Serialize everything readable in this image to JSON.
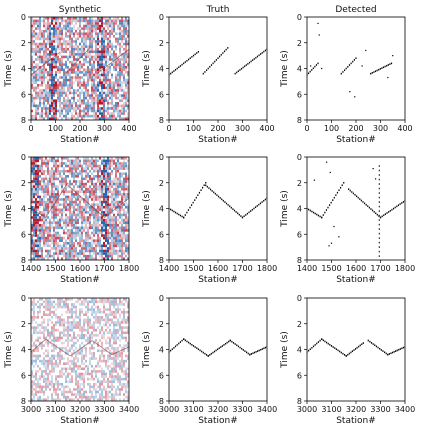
{
  "column_titles": [
    "Synthetic",
    "Truth",
    "Detected"
  ],
  "colors": {
    "positive": "#b2182b",
    "negative": "#2166ac",
    "background": "#ffffff",
    "picks": "#000000"
  },
  "chart_data": [
    {
      "type": "heatmap",
      "title": "Synthetic",
      "colormap": "seismic (blue-white-red)",
      "xlabel": "Station#",
      "ylabel": "Time (s)",
      "xlim": [
        0,
        400
      ],
      "ylim": [
        8,
        0
      ],
      "xticks": [
        "0",
        "100",
        "200",
        "300",
        "400"
      ],
      "yticks": [
        "0",
        "2",
        "4",
        "6",
        "8"
      ],
      "noise_level": 0.8,
      "dark_bands_station": [
        90,
        285
      ],
      "event_segments": [
        {
          "x": [
            0,
            120
          ],
          "y": [
            3.5,
            5.3
          ]
        },
        {
          "x": [
            140,
            240
          ],
          "y": [
            3.6,
            5.6
          ]
        },
        {
          "x": [
            270,
            400
          ],
          "y": [
            3.6,
            5.5
          ]
        }
      ]
    },
    {
      "type": "scatter",
      "title": "Truth",
      "xlabel": "Station#",
      "ylabel": "Time (s)",
      "xlim": [
        0,
        400
      ],
      "ylim": [
        8,
        0
      ],
      "xticks": [
        "0",
        "100",
        "200",
        "300",
        "400"
      ],
      "yticks": [
        "0",
        "2",
        "4",
        "6",
        "8"
      ],
      "segments": [
        {
          "x": [
            0,
            120
          ],
          "y": [
            3.5,
            5.3
          ]
        },
        {
          "x": [
            140,
            240
          ],
          "y": [
            3.6,
            5.6
          ]
        },
        {
          "x": [
            270,
            400
          ],
          "y": [
            3.6,
            5.5
          ]
        }
      ]
    },
    {
      "type": "scatter",
      "title": "Detected",
      "xlabel": "Station#",
      "ylabel": "Time (s)",
      "xlim": [
        0,
        400
      ],
      "ylim": [
        8,
        0
      ],
      "xticks": [
        "0",
        "100",
        "200",
        "300",
        "400"
      ],
      "yticks": [
        "0",
        "2",
        "4",
        "6",
        "8"
      ],
      "segments": [
        {
          "x": [
            0,
            45
          ],
          "y": [
            3.5,
            4.4
          ]
        },
        {
          "x": [
            140,
            200
          ],
          "y": [
            3.6,
            4.8
          ]
        },
        {
          "x": [
            260,
            345
          ],
          "y": [
            3.6,
            4.4
          ]
        }
      ],
      "outliers": [
        [
          15,
          4.2
        ],
        [
          45,
          7.5
        ],
        [
          50,
          6.6
        ],
        [
          60,
          4.0
        ],
        [
          175,
          2.2
        ],
        [
          195,
          1.8
        ],
        [
          225,
          4.2
        ],
        [
          240,
          5.4
        ],
        [
          330,
          3.3
        ],
        [
          350,
          5.0
        ]
      ]
    },
    {
      "type": "heatmap",
      "title": "Synthetic",
      "colormap": "seismic (blue-white-red)",
      "xlabel": "Station#",
      "ylabel": "Time (s)",
      "xlim": [
        1400,
        1800
      ],
      "ylim": [
        8,
        0
      ],
      "xticks": [
        "1400",
        "1500",
        "1600",
        "1700",
        "1800"
      ],
      "yticks": [
        "0",
        "2",
        "4",
        "6",
        "8"
      ],
      "noise_level": 0.8,
      "dark_bands_station": [
        1420,
        1700
      ],
      "event_segments": [
        {
          "x": [
            1400,
            1460
          ],
          "y": [
            4.0,
            3.3
          ]
        },
        {
          "x": [
            1460,
            1550
          ],
          "y": [
            3.3,
            6.0
          ]
        },
        {
          "x": [
            1550,
            1700
          ],
          "y": [
            5.8,
            3.3
          ]
        },
        {
          "x": [
            1700,
            1800
          ],
          "y": [
            3.3,
            4.8
          ]
        }
      ]
    },
    {
      "type": "scatter",
      "title": "Truth",
      "xlabel": "Station#",
      "ylabel": "Time (s)",
      "xlim": [
        1400,
        1800
      ],
      "ylim": [
        8,
        0
      ],
      "xticks": [
        "1400",
        "1500",
        "1600",
        "1700",
        "1800"
      ],
      "yticks": [
        "0",
        "2",
        "4",
        "6",
        "8"
      ],
      "segments": [
        {
          "x": [
            1400,
            1460
          ],
          "y": [
            4.0,
            3.3
          ]
        },
        {
          "x": [
            1460,
            1550
          ],
          "y": [
            3.3,
            6.0
          ]
        },
        {
          "x": [
            1550,
            1700
          ],
          "y": [
            5.8,
            3.3
          ]
        },
        {
          "x": [
            1700,
            1800
          ],
          "y": [
            3.3,
            4.8
          ]
        }
      ]
    },
    {
      "type": "scatter",
      "title": "Detected",
      "xlabel": "Station#",
      "ylabel": "Time (s)",
      "xlim": [
        1400,
        1800
      ],
      "ylim": [
        8,
        0
      ],
      "xticks": [
        "1400",
        "1500",
        "1600",
        "1700",
        "1800"
      ],
      "yticks": [
        "0",
        "2",
        "4",
        "6",
        "8"
      ],
      "segments": [
        {
          "x": [
            1400,
            1460
          ],
          "y": [
            4.0,
            3.3
          ]
        },
        {
          "x": [
            1460,
            1550
          ],
          "y": [
            3.3,
            6.0
          ]
        },
        {
          "x": [
            1570,
            1700
          ],
          "y": [
            5.5,
            3.3
          ]
        },
        {
          "x": [
            1700,
            1800
          ],
          "y": [
            3.3,
            4.6
          ]
        }
      ],
      "vertical_streak": {
        "x": 1695,
        "y": [
          0.3,
          7.5
        ]
      },
      "outliers": [
        [
          1490,
          1.1
        ],
        [
          1500,
          1.3
        ],
        [
          1510,
          2.6
        ],
        [
          1430,
          6.2
        ],
        [
          1495,
          6.8
        ],
        [
          1480,
          7.6
        ],
        [
          1530,
          1.8
        ],
        [
          1670,
          7.1
        ],
        [
          1680,
          6.3
        ]
      ]
    },
    {
      "type": "heatmap",
      "title": "Synthetic",
      "colormap": "seismic (blue-white-red)",
      "xlabel": "Station#",
      "ylabel": "Time (s)",
      "xlim": [
        3000,
        3400
      ],
      "ylim": [
        8,
        0
      ],
      "xticks": [
        "3000",
        "3100",
        "3200",
        "3300",
        "3400"
      ],
      "yticks": [
        "0",
        "2",
        "4",
        "6",
        "8"
      ],
      "noise_level": 0.45,
      "dark_bands_station": [],
      "event_segments": [
        {
          "x": [
            3000,
            3060
          ],
          "y": [
            3.8,
            4.8
          ]
        },
        {
          "x": [
            3060,
            3160
          ],
          "y": [
            4.8,
            3.5
          ]
        },
        {
          "x": [
            3160,
            3250
          ],
          "y": [
            3.5,
            4.7
          ]
        },
        {
          "x": [
            3250,
            3330
          ],
          "y": [
            4.7,
            3.6
          ]
        },
        {
          "x": [
            3330,
            3400
          ],
          "y": [
            3.6,
            4.2
          ]
        }
      ]
    },
    {
      "type": "scatter",
      "title": "Truth",
      "xlabel": "Station#",
      "ylabel": "Time (s)",
      "xlim": [
        3000,
        3400
      ],
      "ylim": [
        8,
        0
      ],
      "xticks": [
        "3000",
        "3100",
        "3200",
        "3300",
        "3400"
      ],
      "yticks": [
        "0",
        "2",
        "4",
        "6",
        "8"
      ],
      "segments": [
        {
          "x": [
            3000,
            3060
          ],
          "y": [
            3.8,
            4.8
          ]
        },
        {
          "x": [
            3060,
            3160
          ],
          "y": [
            4.8,
            3.5
          ]
        },
        {
          "x": [
            3160,
            3250
          ],
          "y": [
            3.5,
            4.7
          ]
        },
        {
          "x": [
            3250,
            3330
          ],
          "y": [
            4.7,
            3.6
          ]
        },
        {
          "x": [
            3330,
            3400
          ],
          "y": [
            3.6,
            4.2
          ]
        }
      ]
    },
    {
      "type": "scatter",
      "title": "Detected",
      "xlabel": "Station#",
      "ylabel": "Time (s)",
      "xlim": [
        3000,
        3400
      ],
      "ylim": [
        8,
        0
      ],
      "xticks": [
        "3000",
        "3100",
        "3200",
        "3300",
        "3400"
      ],
      "yticks": [
        "0",
        "2",
        "4",
        "6",
        "8"
      ],
      "segments": [
        {
          "x": [
            3000,
            3060
          ],
          "y": [
            3.8,
            4.8
          ]
        },
        {
          "x": [
            3060,
            3160
          ],
          "y": [
            4.8,
            3.5
          ]
        },
        {
          "x": [
            3160,
            3230
          ],
          "y": [
            3.5,
            4.5
          ]
        },
        {
          "x": [
            3250,
            3330
          ],
          "y": [
            4.7,
            3.6
          ]
        },
        {
          "x": [
            3330,
            3400
          ],
          "y": [
            3.6,
            4.2
          ]
        }
      ],
      "outliers": []
    }
  ]
}
